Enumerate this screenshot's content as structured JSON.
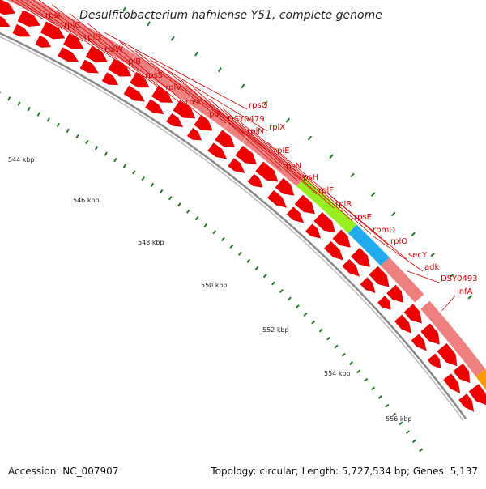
{
  "header": {
    "title": "Desulfitobacterium hafniense Y51, complete genome"
  },
  "footer": {
    "accession": "Accession: NC_007907",
    "summary": "Topology: circular; Length: 5,727,534 bp; Genes: 5,137"
  },
  "scale_labels": [
    "544 kbp",
    "546 kbp",
    "548 kbp",
    "550 kbp",
    "552 kbp",
    "554 kbp",
    "556 kbp"
  ],
  "genes": [
    "rpsJ",
    "rplC",
    "rplD",
    "rplW",
    "rplB",
    "rpsS",
    "rplV",
    "rpsC",
    "rplP",
    "rpsQ",
    "DSY0479",
    "rplN",
    "rplX",
    "rplE",
    "rpsN",
    "rpsH",
    "rplF",
    "rplR",
    "rpsE",
    "rpmD",
    "rplO",
    "secY",
    "adk",
    "DSY0493",
    "infA"
  ],
  "colors": {
    "gene_red": "#ee0000",
    "gene_pink": "#ee8080",
    "highlight_green": "#99ee22",
    "highlight_blue": "#22aaee",
    "highlight_orange": "#ff9900",
    "backbone_gray": "#888888",
    "tick_green": "#227722",
    "label_red": "#d40000"
  }
}
